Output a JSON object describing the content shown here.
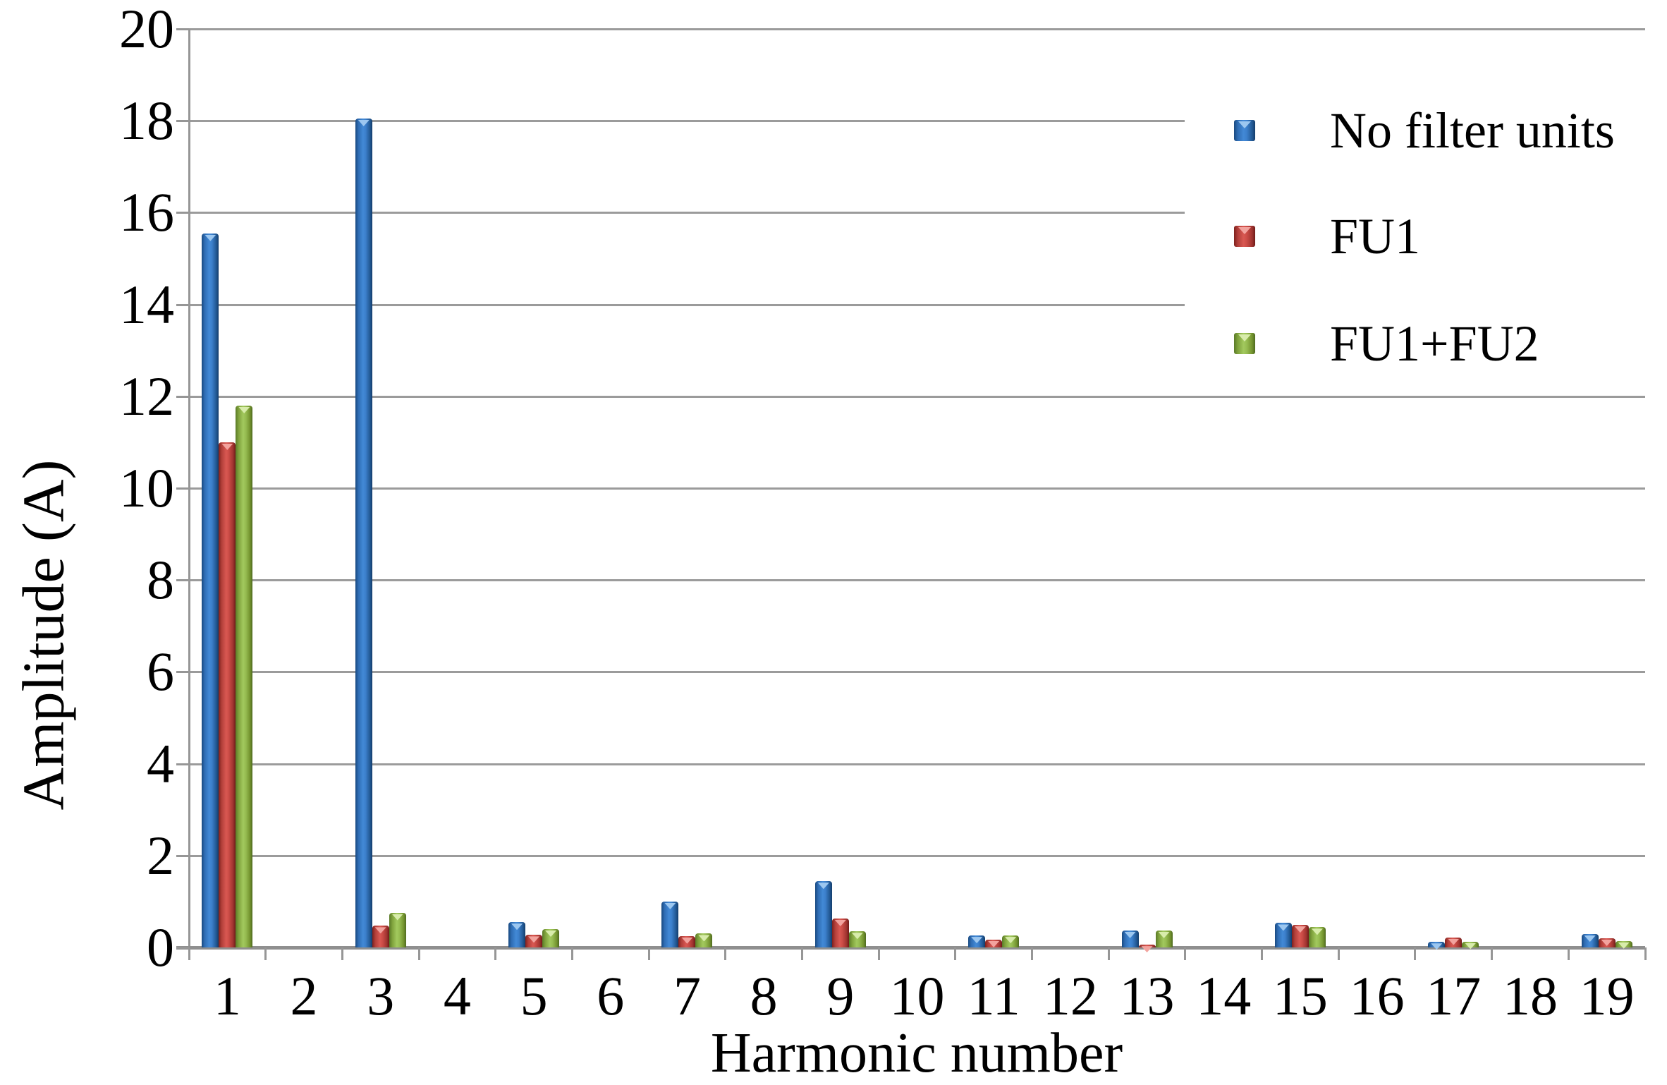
{
  "figure": {
    "background": "#ffffff",
    "gridline_color": "#9b9b9b",
    "axis_color": "#8f8f8f"
  },
  "chart_data": {
    "type": "bar",
    "title": "",
    "xlabel": "Harmonic number",
    "ylabel": "Amplitude (A)",
    "categories": [
      "1",
      "2",
      "3",
      "4",
      "5",
      "6",
      "7",
      "8",
      "9",
      "10",
      "11",
      "12",
      "13",
      "14",
      "15",
      "16",
      "17",
      "18",
      "19"
    ],
    "ylim": [
      0,
      20
    ],
    "ytick_step": 2,
    "grid": "horizontal",
    "legend_position": "top-right-overlay",
    "series": [
      {
        "name": "No filter units",
        "color": "#3f83cf",
        "values": [
          15.55,
          0,
          18.05,
          0,
          0.55,
          0,
          1.0,
          0,
          1.44,
          0,
          0.26,
          0,
          0.37,
          0,
          0.53,
          0,
          0.12,
          0,
          0.29
        ]
      },
      {
        "name": "FU1",
        "color": "#c0504d",
        "values": [
          11.0,
          0,
          0.47,
          0,
          0.27,
          0,
          0.25,
          0,
          0.63,
          0,
          0.17,
          0,
          0.06,
          0,
          0.49,
          0,
          0.22,
          0,
          0.2
        ]
      },
      {
        "name": "FU1+FU2",
        "color": "#9bbb59",
        "values": [
          11.8,
          0,
          0.76,
          0,
          0.4,
          0,
          0.3,
          0,
          0.35,
          0,
          0.26,
          0,
          0.37,
          0,
          0.44,
          0,
          0.13,
          0,
          0.14
        ]
      }
    ]
  }
}
